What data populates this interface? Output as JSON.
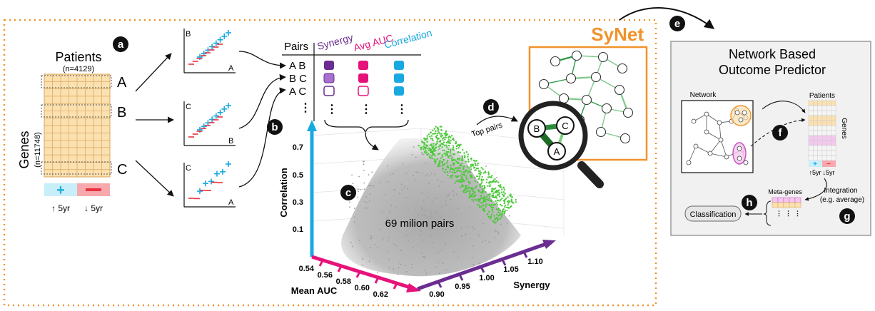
{
  "panel_letters": [
    "a",
    "b",
    "c",
    "d",
    "e",
    "f",
    "g",
    "h"
  ],
  "panel_a": {
    "patients_label": "Patients",
    "patients_n": "(n=4129)",
    "genes_label": "Genes",
    "genes_n": "(n=11748)",
    "gene_labels": [
      "A",
      "B",
      "C"
    ],
    "plus": "+",
    "minus": "−",
    "good_label": "↑ 5yr",
    "poor_label": "↓ 5yr"
  },
  "mini_plots": [
    {
      "ylabel": "B",
      "xlabel": "A"
    },
    {
      "ylabel": "C",
      "xlabel": "B"
    },
    {
      "ylabel": "C",
      "xlabel": "A"
    }
  ],
  "pairs_table": {
    "header": "Pairs",
    "columns": [
      "Synergy",
      "Avg AUC",
      "Correlation"
    ],
    "rows": [
      "A B",
      "B C",
      "A C"
    ],
    "ellipsis": "⋮"
  },
  "colors": {
    "synergy": "#6b2d91",
    "auc": "#e6127a",
    "correlation": "#19a9e1",
    "points": "#4cc93a",
    "cloud": "#b8b8b8",
    "orange": "#f0932b",
    "plus_blue": "#19a9e1",
    "minus_red": "#e8323c"
  },
  "panel_c": {
    "cloud_label": "69 milion pairs",
    "y_axis_label": "Correlation",
    "y_ticks": [
      "0.7",
      "0.5",
      "0.3",
      "0.1"
    ],
    "x_axis_label": "Mean AUC",
    "x_ticks": [
      "0.54",
      "0.56",
      "0.58",
      "0.60",
      "0.62"
    ],
    "z_axis_label": "Synergy",
    "z_ticks": [
      "0.90",
      "0.95",
      "1.00",
      "1.05",
      "1.10"
    ]
  },
  "panel_d": {
    "title": "SyNet",
    "top_pairs_label": "Top pairs",
    "node_labels": [
      "B",
      "C",
      "A"
    ]
  },
  "panel_e": {
    "title_line1": "Network Based",
    "title_line2": "Outcome Predictor",
    "network_label": "Network",
    "patients_label": "Patients",
    "genes_label": "Genes",
    "good_label": "↑5yr",
    "poor_label": "↓5yr",
    "plus": "+",
    "minus": "−",
    "integration_line1": "Integration",
    "integration_line2": "(e.g. average)",
    "meta_genes_label": "Meta-genes",
    "classification_label": "Classification"
  }
}
